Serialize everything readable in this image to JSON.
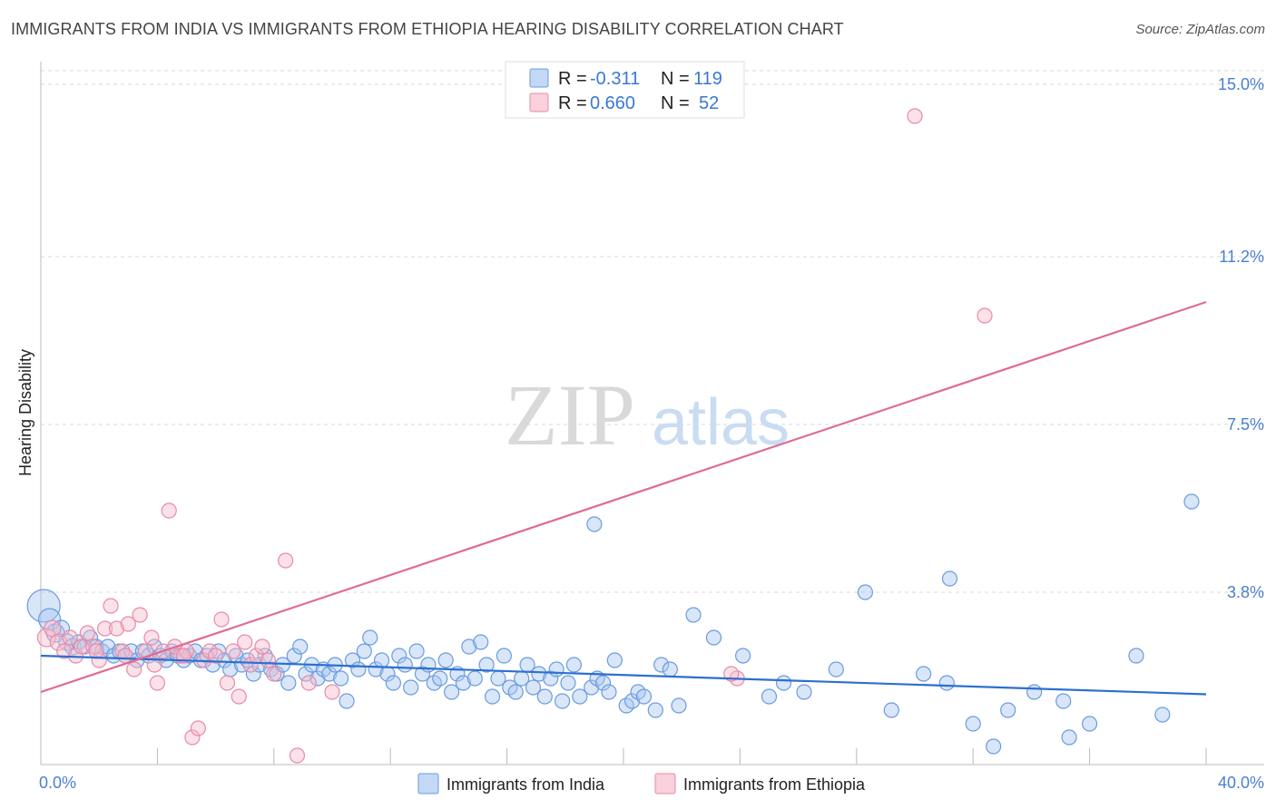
{
  "header": {
    "title": "IMMIGRANTS FROM INDIA VS IMMIGRANTS FROM ETHIOPIA HEARING DISABILITY CORRELATION CHART",
    "source": "Source: ZipAtlas.com"
  },
  "watermark": {
    "part1": "ZIP",
    "part2": "atlas"
  },
  "colors": {
    "india_fill": "#a9c8ef",
    "india_stroke": "#6a9be0",
    "india_line": "#2d6fd0",
    "ethiopia_fill": "#f7bccd",
    "ethiopia_stroke": "#e88aa8",
    "ethiopia_line": "#e06b93",
    "grid": "#d8d8d8",
    "axis_label": "#4a7fd0"
  },
  "legend": {
    "rows": [
      {
        "r_label": "R = ",
        "r_value": "-0.311",
        "n_label": "N = ",
        "n_value": "119"
      },
      {
        "r_label": "R = ",
        "r_value": "0.660",
        "n_label": "N = ",
        "n_value": "52"
      }
    ]
  },
  "chart_data": {
    "type": "scatter",
    "ylabel": "Hearing Disability",
    "xlim": [
      0,
      40
    ],
    "ylim": [
      0,
      15.3
    ],
    "y_ticks": [
      {
        "value": 3.8,
        "label": "3.8%"
      },
      {
        "value": 7.5,
        "label": "7.5%"
      },
      {
        "value": 11.2,
        "label": "11.2%"
      },
      {
        "value": 15.0,
        "label": "15.0%"
      }
    ],
    "x_tick_labels": [
      {
        "value": 0,
        "label": "0.0%"
      },
      {
        "value": 40,
        "label": "40.0%"
      }
    ],
    "x_minor_ticks": [
      4,
      8,
      12,
      16,
      20,
      24,
      28,
      32,
      36,
      40
    ],
    "series": [
      {
        "name": "Immigrants from India",
        "trend": {
          "x0": 0,
          "y0": 2.4,
          "x1": 40,
          "y1": 1.55
        },
        "points": [
          [
            0.1,
            3.5,
            18
          ],
          [
            0.3,
            3.2,
            12
          ],
          [
            0.5,
            2.9,
            10
          ],
          [
            0.7,
            3.0,
            9
          ],
          [
            0.9,
            2.7,
            9
          ],
          [
            1.1,
            2.6,
            9
          ],
          [
            1.3,
            2.7,
            8
          ],
          [
            1.5,
            2.6,
            8
          ],
          [
            1.7,
            2.8,
            8
          ],
          [
            1.9,
            2.6,
            8
          ],
          [
            2.1,
            2.5,
            8
          ],
          [
            2.3,
            2.6,
            8
          ],
          [
            2.5,
            2.4,
            8
          ],
          [
            2.7,
            2.5,
            8
          ],
          [
            2.9,
            2.4,
            8
          ],
          [
            3.1,
            2.5,
            8
          ],
          [
            3.3,
            2.3,
            8
          ],
          [
            3.5,
            2.5,
            8
          ],
          [
            3.7,
            2.4,
            8
          ],
          [
            3.9,
            2.6,
            8
          ],
          [
            4.1,
            2.4,
            8
          ],
          [
            4.3,
            2.3,
            8
          ],
          [
            4.5,
            2.5,
            8
          ],
          [
            4.7,
            2.4,
            8
          ],
          [
            4.9,
            2.3,
            8
          ],
          [
            5.1,
            2.4,
            8
          ],
          [
            5.3,
            2.5,
            8
          ],
          [
            5.5,
            2.3,
            8
          ],
          [
            5.7,
            2.4,
            8
          ],
          [
            5.9,
            2.2,
            8
          ],
          [
            6.1,
            2.5,
            8
          ],
          [
            6.3,
            2.3,
            8
          ],
          [
            6.5,
            2.1,
            8
          ],
          [
            6.7,
            2.4,
            8
          ],
          [
            6.9,
            2.2,
            8
          ],
          [
            7.1,
            2.3,
            8
          ],
          [
            7.3,
            2.0,
            8
          ],
          [
            7.5,
            2.2,
            8
          ],
          [
            7.7,
            2.4,
            8
          ],
          [
            7.9,
            2.1,
            8
          ],
          [
            8.1,
            2.0,
            8
          ],
          [
            8.3,
            2.2,
            8
          ],
          [
            8.5,
            1.8,
            8
          ],
          [
            8.7,
            2.4,
            8
          ],
          [
            8.9,
            2.6,
            8
          ],
          [
            9.1,
            2.0,
            8
          ],
          [
            9.3,
            2.2,
            8
          ],
          [
            9.5,
            1.9,
            8
          ],
          [
            9.7,
            2.1,
            8
          ],
          [
            9.9,
            2.0,
            8
          ],
          [
            10.1,
            2.2,
            8
          ],
          [
            10.3,
            1.9,
            8
          ],
          [
            10.5,
            1.4,
            8
          ],
          [
            10.7,
            2.3,
            8
          ],
          [
            10.9,
            2.1,
            8
          ],
          [
            11.1,
            2.5,
            8
          ],
          [
            11.3,
            2.8,
            8
          ],
          [
            11.5,
            2.1,
            8
          ],
          [
            11.7,
            2.3,
            8
          ],
          [
            11.9,
            2.0,
            8
          ],
          [
            12.1,
            1.8,
            8
          ],
          [
            12.3,
            2.4,
            8
          ],
          [
            12.5,
            2.2,
            8
          ],
          [
            12.7,
            1.7,
            8
          ],
          [
            12.9,
            2.5,
            8
          ],
          [
            13.1,
            2.0,
            8
          ],
          [
            13.3,
            2.2,
            8
          ],
          [
            13.5,
            1.8,
            8
          ],
          [
            13.7,
            1.9,
            8
          ],
          [
            13.9,
            2.3,
            8
          ],
          [
            14.1,
            1.6,
            8
          ],
          [
            14.3,
            2.0,
            8
          ],
          [
            14.5,
            1.8,
            8
          ],
          [
            14.7,
            2.6,
            8
          ],
          [
            14.9,
            1.9,
            8
          ],
          [
            15.1,
            2.7,
            8
          ],
          [
            15.3,
            2.2,
            8
          ],
          [
            15.5,
            1.5,
            8
          ],
          [
            15.7,
            1.9,
            8
          ],
          [
            15.9,
            2.4,
            8
          ],
          [
            16.1,
            1.7,
            8
          ],
          [
            16.3,
            1.6,
            8
          ],
          [
            16.5,
            1.9,
            8
          ],
          [
            16.7,
            2.2,
            8
          ],
          [
            16.9,
            1.7,
            8
          ],
          [
            17.1,
            2.0,
            8
          ],
          [
            17.3,
            1.5,
            8
          ],
          [
            17.5,
            1.9,
            8
          ],
          [
            17.7,
            2.1,
            8
          ],
          [
            17.9,
            1.4,
            8
          ],
          [
            18.1,
            1.8,
            8
          ],
          [
            18.3,
            2.2,
            8
          ],
          [
            18.5,
            1.5,
            8
          ],
          [
            18.9,
            1.7,
            8
          ],
          [
            19.1,
            1.9,
            8
          ],
          [
            19.3,
            1.8,
            8
          ],
          [
            19.5,
            1.6,
            8
          ],
          [
            19.7,
            2.3,
            8
          ],
          [
            20.1,
            1.3,
            8
          ],
          [
            20.3,
            1.4,
            8
          ],
          [
            20.5,
            1.6,
            8
          ],
          [
            20.7,
            1.5,
            8
          ],
          [
            21.1,
            1.2,
            8
          ],
          [
            21.3,
            2.2,
            8
          ],
          [
            21.6,
            2.1,
            8
          ],
          [
            21.9,
            1.3,
            8
          ],
          [
            22.4,
            3.3,
            8
          ],
          [
            23.1,
            2.8,
            8
          ],
          [
            24.1,
            2.4,
            8
          ],
          [
            25.0,
            1.5,
            8
          ],
          [
            25.5,
            1.8,
            8
          ],
          [
            26.2,
            1.6,
            8
          ],
          [
            27.3,
            2.1,
            8
          ],
          [
            28.3,
            3.8,
            8
          ],
          [
            29.2,
            1.2,
            8
          ],
          [
            30.3,
            2.0,
            8
          ],
          [
            31.1,
            1.8,
            8
          ],
          [
            32.0,
            0.9,
            8
          ],
          [
            32.7,
            0.4,
            8
          ],
          [
            33.2,
            1.2,
            8
          ],
          [
            34.1,
            1.6,
            8
          ],
          [
            35.1,
            1.4,
            8
          ],
          [
            35.3,
            0.6,
            8
          ],
          [
            36.0,
            0.9,
            8
          ],
          [
            37.6,
            2.4,
            8
          ],
          [
            38.5,
            1.1,
            8
          ],
          [
            39.5,
            5.8,
            8
          ],
          [
            19.0,
            5.3,
            8
          ],
          [
            31.2,
            4.1,
            8
          ]
        ]
      },
      {
        "name": "Immigrants from Ethiopia",
        "trend": {
          "x0": 0,
          "y0": 1.6,
          "x1": 40,
          "y1": 10.2
        },
        "points": [
          [
            0.2,
            2.8,
            10
          ],
          [
            0.4,
            3.0,
            9
          ],
          [
            0.6,
            2.7,
            9
          ],
          [
            0.8,
            2.5,
            8
          ],
          [
            1.0,
            2.8,
            8
          ],
          [
            1.2,
            2.4,
            8
          ],
          [
            1.4,
            2.6,
            8
          ],
          [
            1.6,
            2.9,
            8
          ],
          [
            1.8,
            2.6,
            8
          ],
          [
            2.0,
            2.3,
            8
          ],
          [
            2.2,
            3.0,
            8
          ],
          [
            2.4,
            3.5,
            8
          ],
          [
            2.6,
            3.0,
            8
          ],
          [
            2.8,
            2.5,
            8
          ],
          [
            3.0,
            3.1,
            8
          ],
          [
            3.2,
            2.1,
            8
          ],
          [
            3.4,
            3.3,
            8
          ],
          [
            3.6,
            2.5,
            8
          ],
          [
            3.8,
            2.8,
            8
          ],
          [
            4.0,
            1.8,
            8
          ],
          [
            4.2,
            2.5,
            8
          ],
          [
            4.4,
            5.6,
            8
          ],
          [
            4.6,
            2.6,
            8
          ],
          [
            4.8,
            2.4,
            8
          ],
          [
            5.0,
            2.5,
            8
          ],
          [
            5.2,
            0.6,
            8
          ],
          [
            5.4,
            0.8,
            8
          ],
          [
            5.6,
            2.3,
            8
          ],
          [
            5.8,
            2.5,
            8
          ],
          [
            6.0,
            2.4,
            8
          ],
          [
            6.2,
            3.2,
            8
          ],
          [
            6.4,
            1.8,
            8
          ],
          [
            6.6,
            2.5,
            8
          ],
          [
            6.8,
            1.5,
            8
          ],
          [
            7.0,
            2.7,
            8
          ],
          [
            7.2,
            2.2,
            8
          ],
          [
            7.4,
            2.4,
            8
          ],
          [
            7.6,
            2.6,
            8
          ],
          [
            7.8,
            2.3,
            8
          ],
          [
            8.0,
            2.0,
            8
          ],
          [
            8.4,
            4.5,
            8
          ],
          [
            8.8,
            0.2,
            8
          ],
          [
            9.2,
            1.8,
            8
          ],
          [
            10.0,
            1.6,
            8
          ],
          [
            3.9,
            2.2,
            8
          ],
          [
            4.9,
            2.4,
            8
          ],
          [
            2.9,
            2.4,
            8
          ],
          [
            1.9,
            2.5,
            8
          ],
          [
            23.9,
            1.9,
            8
          ],
          [
            23.7,
            2.0,
            8
          ],
          [
            30.0,
            14.3,
            8
          ],
          [
            32.4,
            9.9,
            8
          ]
        ]
      }
    ]
  }
}
